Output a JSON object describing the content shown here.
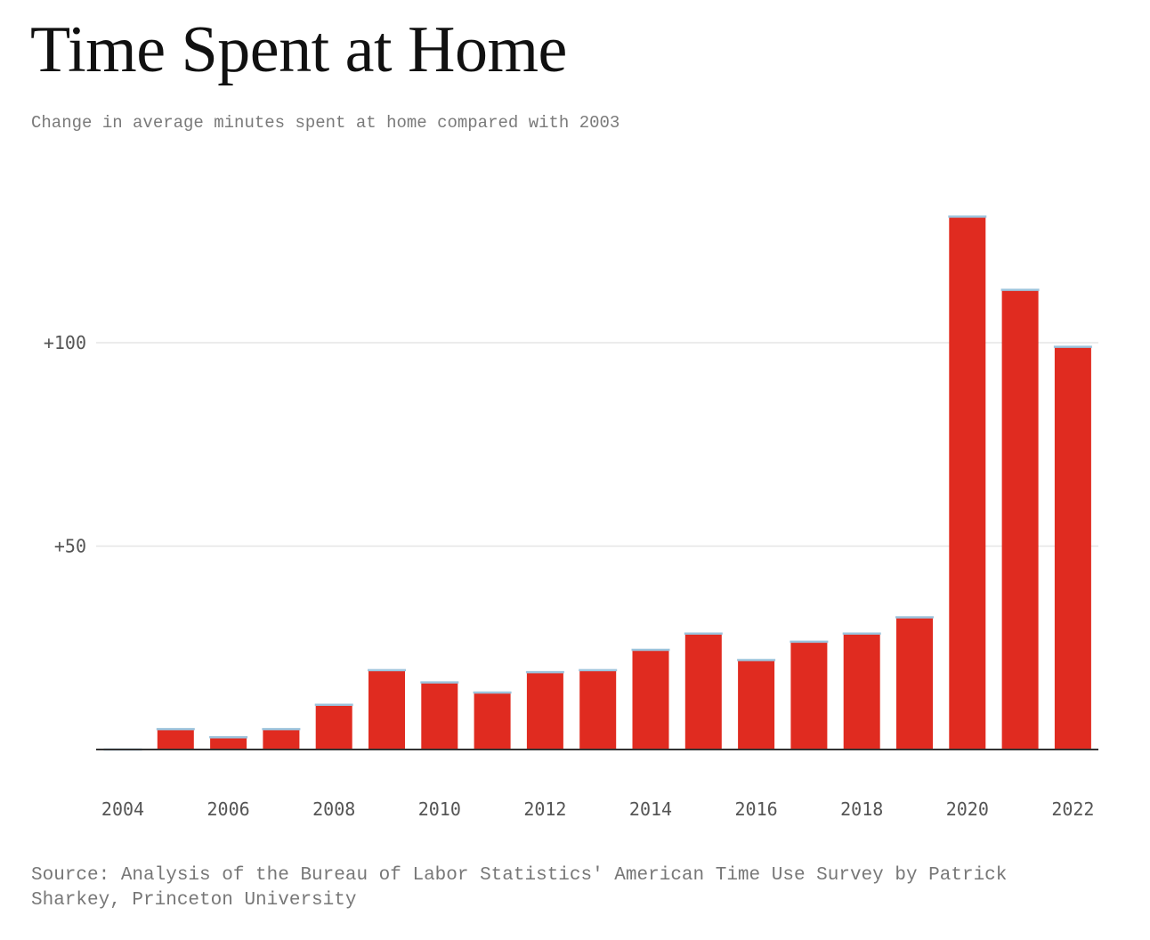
{
  "title": "Time Spent at Home",
  "subtitle": "Change in average minutes spent at home compared with 2003",
  "source": "Source: Analysis of the Bureau of Labor Statistics' American Time Use Survey by Patrick Sharkey, Princeton University",
  "colors": {
    "bar": "#e02b20",
    "bar_cap": "#9cc3dc",
    "grid": "#e6e6e6",
    "baseline": "#333333"
  },
  "chart_data": {
    "type": "bar",
    "title": "Time Spent at Home",
    "subtitle": "Change in average minutes spent at home compared with 2003",
    "xlabel": "",
    "ylabel": "",
    "categories": [
      "2004",
      "2005",
      "2006",
      "2007",
      "2008",
      "2009",
      "2010",
      "2011",
      "2012",
      "2013",
      "2014",
      "2015",
      "2016",
      "2017",
      "2018",
      "2019",
      "2020",
      "2021",
      "2022"
    ],
    "values": [
      0,
      5,
      3,
      5,
      11,
      19.5,
      16.5,
      14,
      19,
      19.5,
      24.5,
      28.5,
      22,
      26.5,
      28.5,
      32.5,
      131,
      113,
      99
    ],
    "ylim": [
      0,
      135
    ],
    "yticks": [
      50,
      100
    ],
    "ytick_labels": [
      "+50",
      "+100"
    ],
    "xtick_labels": [
      "2004",
      "2006",
      "2008",
      "2010",
      "2012",
      "2014",
      "2016",
      "2018",
      "2020",
      "2022"
    ],
    "grid": true,
    "legend": "none"
  }
}
